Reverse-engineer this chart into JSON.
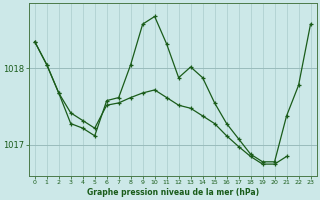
{
  "title": "Graphe pression niveau de la mer (hPa)",
  "background_color": "#cce8e8",
  "line_color": "#1a5c1a",
  "grid_color": "#aacccc",
  "hgrid_color": "#99bbbb",
  "xlim": [
    -0.5,
    23.5
  ],
  "ylim": [
    1016.6,
    1018.85
  ],
  "yticks": [
    1017,
    1018
  ],
  "xticks": [
    0,
    1,
    2,
    3,
    4,
    5,
    6,
    7,
    8,
    9,
    10,
    11,
    12,
    13,
    14,
    15,
    16,
    17,
    18,
    19,
    20,
    21,
    22,
    23
  ],
  "series1_x": [
    0,
    1,
    2,
    3,
    4,
    5,
    6,
    7,
    8,
    9,
    10,
    11,
    12,
    13,
    14,
    15,
    16,
    17,
    18,
    19,
    20,
    21,
    22,
    23
  ],
  "series1_y": [
    1018.35,
    1018.05,
    1017.68,
    1017.28,
    1017.22,
    1017.12,
    1017.58,
    1017.62,
    1018.05,
    1018.58,
    1018.68,
    1018.32,
    1017.88,
    1018.02,
    1017.88,
    1017.55,
    1017.28,
    1017.08,
    1016.88,
    1016.78,
    1016.78,
    1017.38,
    1017.78,
    1018.58
  ],
  "series2_x": [
    0,
    1,
    2,
    3,
    4,
    5,
    6,
    7,
    8,
    9,
    10,
    11,
    12,
    13,
    14,
    15,
    16,
    17,
    18,
    19,
    20,
    21
  ],
  "series2_y": [
    1018.35,
    1018.05,
    1017.68,
    1017.42,
    1017.32,
    1017.22,
    1017.52,
    1017.55,
    1017.62,
    1017.68,
    1017.72,
    1017.62,
    1017.52,
    1017.48,
    1017.38,
    1017.28,
    1017.12,
    1016.98,
    1016.85,
    1016.75,
    1016.75,
    1016.85
  ]
}
